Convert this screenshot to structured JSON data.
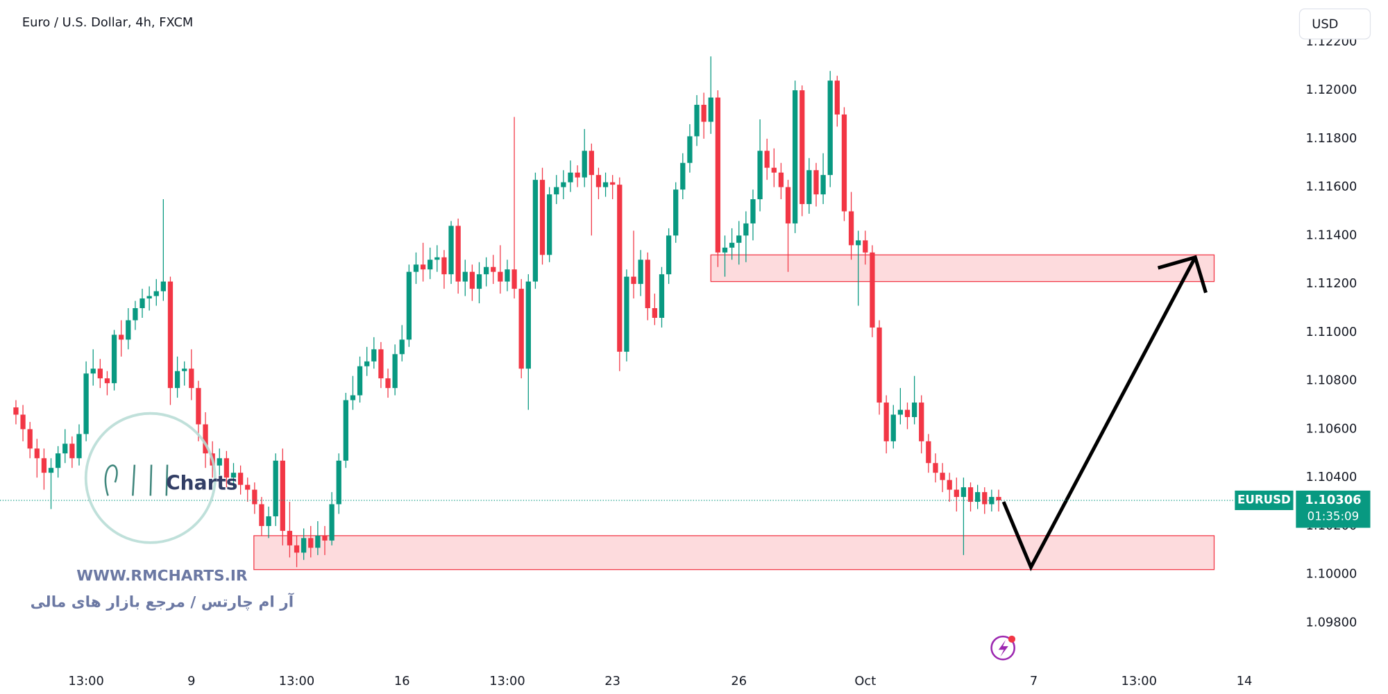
{
  "chart_data": {
    "type": "candlestick",
    "title": "Euro / U.S. Dollar, 4h, FXCM",
    "currency": "USD",
    "symbol": "EURUSD",
    "last_price": 1.10306,
    "countdown": "01:35:09",
    "up_color": "#089981",
    "down_color": "#f23645",
    "ylim": [
      1.09623,
      1.12373
    ],
    "xlim": [
      -2.27,
      182.1
    ],
    "grid": false,
    "yticks": [
      {
        "value": 1.098,
        "label": "1.09800"
      },
      {
        "value": 1.1,
        "label": "1.10000"
      },
      {
        "value": 1.102,
        "label": "1.10200"
      },
      {
        "value": 1.104,
        "label": "1.10400"
      },
      {
        "value": 1.106,
        "label": "1.10600"
      },
      {
        "value": 1.108,
        "label": "1.10800"
      },
      {
        "value": 1.11,
        "label": "1.11000"
      },
      {
        "value": 1.112,
        "label": "1.11200"
      },
      {
        "value": 1.114,
        "label": "1.11400"
      },
      {
        "value": 1.116,
        "label": "1.11600"
      },
      {
        "value": 1.118,
        "label": "1.11800"
      },
      {
        "value": 1.12,
        "label": "1.12000"
      },
      {
        "value": 1.122,
        "label": "1.12200"
      }
    ],
    "xticks": [
      {
        "value": 10,
        "label": "13:00"
      },
      {
        "value": 25,
        "label": "9"
      },
      {
        "value": 40,
        "label": "13:00"
      },
      {
        "value": 55,
        "label": "16"
      },
      {
        "value": 70,
        "label": "13:00"
      },
      {
        "value": 85,
        "label": "23"
      },
      {
        "value": 103,
        "label": "26"
      },
      {
        "value": 121,
        "label": "Oct"
      },
      {
        "value": 145,
        "label": "7"
      },
      {
        "value": 160,
        "label": "13:00"
      },
      {
        "value": 175,
        "label": "14"
      }
    ],
    "open": [
      1.1069,
      1.1066,
      1.106,
      1.1052,
      1.1048,
      1.1042,
      1.1044,
      1.105,
      1.1054,
      1.1048,
      1.1058,
      1.1083,
      1.1085,
      1.1081,
      1.1079,
      1.1099,
      1.1097,
      1.1105,
      1.111,
      1.1114,
      1.1115,
      1.1117,
      1.1121,
      1.1077,
      1.1084,
      1.1085,
      1.1077,
      1.1062,
      1.105,
      1.1045,
      1.1048,
      1.104,
      1.1042,
      1.1037,
      1.1035,
      1.1029,
      1.102,
      1.1024,
      1.1047,
      1.1018,
      1.1012,
      1.1009,
      1.1015,
      1.1011,
      1.1016,
      1.1014,
      1.1029,
      1.1047,
      1.1072,
      1.1074,
      1.1086,
      1.1088,
      1.1093,
      1.1081,
      1.1077,
      1.1091,
      1.1097,
      1.1125,
      1.1128,
      1.1126,
      1.113,
      1.1131,
      1.1124,
      1.1144,
      1.1121,
      1.1125,
      1.1118,
      1.1124,
      1.1127,
      1.1125,
      1.1121,
      1.1126,
      1.1118,
      1.1085,
      1.1121,
      1.1163,
      1.1132,
      1.1157,
      1.116,
      1.1162,
      1.1166,
      1.1164,
      1.1175,
      1.1165,
      1.116,
      1.1162,
      1.1161,
      1.1092,
      1.1123,
      1.112,
      1.113,
      1.111,
      1.1106,
      1.1124,
      1.114,
      1.1159,
      1.117,
      1.1181,
      1.1194,
      1.1187,
      1.1197,
      1.1133,
      1.1135,
      1.1137,
      1.114,
      1.1145,
      1.1155,
      1.1175,
      1.1168,
      1.1166,
      1.116,
      1.1145,
      1.12,
      1.1153,
      1.1167,
      1.1157,
      1.1165,
      1.1204,
      1.119,
      1.115,
      1.1136,
      1.1138,
      1.1133,
      1.1102,
      1.1071,
      1.1055,
      1.1066,
      1.1068,
      1.1065,
      1.1071,
      1.1055,
      1.1046,
      1.1042,
      1.1039,
      1.1035,
      1.1032,
      1.1036,
      1.103,
      1.1034,
      1.1029,
      1.1032
    ],
    "high": [
      1.1072,
      1.107,
      1.1063,
      1.1056,
      1.1052,
      1.1048,
      1.1053,
      1.106,
      1.1057,
      1.1062,
      1.1088,
      1.1093,
      1.1089,
      1.1084,
      1.1101,
      1.1105,
      1.111,
      1.1113,
      1.1118,
      1.1119,
      1.1122,
      1.1155,
      1.1123,
      1.109,
      1.1088,
      1.1093,
      1.108,
      1.1067,
      1.1055,
      1.1052,
      1.1051,
      1.1046,
      1.1045,
      1.104,
      1.1038,
      1.1032,
      1.1028,
      1.105,
      1.1052,
      1.103,
      1.1016,
      1.1019,
      1.102,
      1.1022,
      1.102,
      1.1034,
      1.105,
      1.1075,
      1.1082,
      1.109,
      1.1094,
      1.1098,
      1.1096,
      1.1085,
      1.1095,
      1.1103,
      1.1128,
      1.1133,
      1.1137,
      1.1135,
      1.1136,
      1.1134,
      1.1146,
      1.1147,
      1.113,
      1.1128,
      1.1129,
      1.1131,
      1.1132,
      1.1136,
      1.113,
      1.1189,
      1.1122,
      1.1124,
      1.1166,
      1.1168,
      1.116,
      1.1165,
      1.1167,
      1.1171,
      1.1169,
      1.1184,
      1.1178,
      1.1168,
      1.1166,
      1.1165,
      1.1164,
      1.1126,
      1.1142,
      1.1134,
      1.1133,
      1.1116,
      1.1127,
      1.1143,
      1.1162,
      1.1174,
      1.1186,
      1.1198,
      1.1199,
      1.1214,
      1.12,
      1.114,
      1.1143,
      1.1146,
      1.115,
      1.1159,
      1.1188,
      1.118,
      1.1176,
      1.117,
      1.1163,
      1.1204,
      1.1202,
      1.1172,
      1.117,
      1.1174,
      1.1208,
      1.1206,
      1.1193,
      1.1158,
      1.1142,
      1.1142,
      1.1136,
      1.1105,
      1.1074,
      1.107,
      1.1077,
      1.1071,
      1.1082,
      1.1074,
      1.1058,
      1.105,
      1.1046,
      1.1042,
      1.104,
      1.104,
      1.1038,
      1.1037,
      1.1036,
      1.1035,
      1.1035
    ],
    "low": [
      1.1062,
      1.1055,
      1.1048,
      1.104,
      1.1035,
      1.1027,
      1.104,
      1.1046,
      1.1044,
      1.1045,
      1.1055,
      1.1078,
      1.1077,
      1.1074,
      1.1076,
      1.109,
      1.1093,
      1.1101,
      1.1106,
      1.1109,
      1.1111,
      1.1113,
      1.107,
      1.1073,
      1.1078,
      1.1072,
      1.1055,
      1.1044,
      1.104,
      1.1041,
      1.1036,
      1.1036,
      1.1033,
      1.103,
      1.1025,
      1.1016,
      1.1015,
      1.102,
      1.1012,
      1.1007,
      1.1003,
      1.1006,
      1.1007,
      1.1008,
      1.1008,
      1.1012,
      1.1025,
      1.1044,
      1.1068,
      1.1071,
      1.1082,
      1.1085,
      1.1077,
      1.1073,
      1.1074,
      1.1088,
      1.1094,
      1.112,
      1.1121,
      1.1122,
      1.1125,
      1.1118,
      1.112,
      1.1116,
      1.1115,
      1.1113,
      1.1112,
      1.1119,
      1.112,
      1.1116,
      1.1117,
      1.1114,
      1.1081,
      1.1068,
      1.1118,
      1.1128,
      1.1129,
      1.1153,
      1.1155,
      1.1158,
      1.116,
      1.116,
      1.114,
      1.1155,
      1.1156,
      1.1155,
      1.1084,
      1.1088,
      1.1114,
      1.1115,
      1.1105,
      1.1103,
      1.1102,
      1.112,
      1.1137,
      1.1155,
      1.1166,
      1.1177,
      1.118,
      1.1182,
      1.1127,
      1.1123,
      1.113,
      1.1128,
      1.1129,
      1.1138,
      1.115,
      1.1163,
      1.116,
      1.1155,
      1.1125,
      1.1141,
      1.1148,
      1.1149,
      1.1152,
      1.1153,
      1.116,
      1.1185,
      1.1146,
      1.113,
      1.1111,
      1.1128,
      1.1098,
      1.1066,
      1.105,
      1.1052,
      1.1062,
      1.106,
      1.1062,
      1.105,
      1.1042,
      1.1038,
      1.1034,
      1.103,
      1.1026,
      1.1008,
      1.1026,
      1.1027,
      1.1025,
      1.1026,
      1.1026
    ],
    "close": [
      1.1066,
      1.106,
      1.1052,
      1.1048,
      1.1042,
      1.1044,
      1.105,
      1.1054,
      1.1048,
      1.1058,
      1.1083,
      1.1085,
      1.1081,
      1.1079,
      1.1099,
      1.1097,
      1.1105,
      1.111,
      1.1114,
      1.1115,
      1.1117,
      1.1121,
      1.1077,
      1.1084,
      1.1085,
      1.1077,
      1.1062,
      1.105,
      1.1045,
      1.1048,
      1.104,
      1.1042,
      1.1037,
      1.1035,
      1.1029,
      1.102,
      1.1024,
      1.1047,
      1.1018,
      1.1012,
      1.1009,
      1.1015,
      1.1011,
      1.1016,
      1.1014,
      1.1029,
      1.1047,
      1.1072,
      1.1074,
      1.1086,
      1.1088,
      1.1093,
      1.1081,
      1.1077,
      1.1091,
      1.1097,
      1.1125,
      1.1128,
      1.1126,
      1.113,
      1.1131,
      1.1124,
      1.1144,
      1.1121,
      1.1125,
      1.1118,
      1.1124,
      1.1127,
      1.1125,
      1.1121,
      1.1126,
      1.1118,
      1.1085,
      1.1121,
      1.1163,
      1.1132,
      1.1157,
      1.116,
      1.1162,
      1.1166,
      1.1164,
      1.1175,
      1.1165,
      1.116,
      1.1162,
      1.1161,
      1.1092,
      1.1123,
      1.112,
      1.113,
      1.111,
      1.1106,
      1.1124,
      1.114,
      1.1159,
      1.117,
      1.1181,
      1.1194,
      1.1187,
      1.1197,
      1.1133,
      1.1135,
      1.1137,
      1.114,
      1.1145,
      1.1155,
      1.1175,
      1.1168,
      1.1166,
      1.116,
      1.1145,
      1.12,
      1.1153,
      1.1167,
      1.1157,
      1.1165,
      1.1204,
      1.119,
      1.115,
      1.1136,
      1.1138,
      1.1133,
      1.1102,
      1.1071,
      1.1055,
      1.1066,
      1.1068,
      1.1065,
      1.1071,
      1.1055,
      1.1046,
      1.1042,
      1.1039,
      1.1035,
      1.1032,
      1.1036,
      1.103,
      1.1034,
      1.1029,
      1.1032,
      1.10306
    ],
    "zones": [
      {
        "y": [
          1.1121,
          1.1132
        ],
        "x": [
          99,
          170.7
        ]
      },
      {
        "y": [
          1.1002,
          1.1016
        ],
        "x": [
          33.9,
          170.7
        ]
      }
    ],
    "zone_color": "#f23645",
    "projection": {
      "x": [
        140.7,
        144.6,
        168
      ],
      "y": [
        1.103,
        1.1003,
        1.1131
      ]
    }
  },
  "watermark": {
    "logo": "Charts",
    "url": "WWW.RMCHARTS.IR",
    "tagline": "آر ام چارتس / مرجع بازار های مالی"
  }
}
